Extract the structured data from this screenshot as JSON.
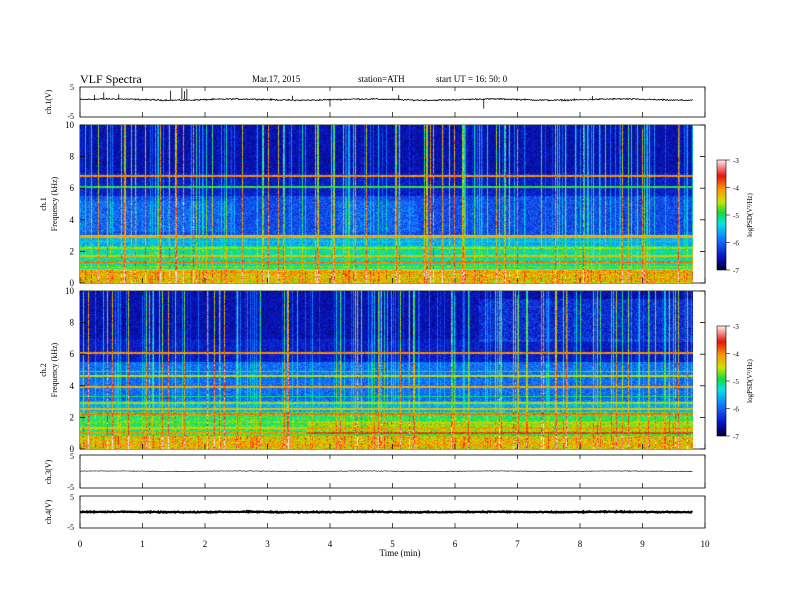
{
  "header": {
    "title": "VLF Spectra",
    "date": "Mar.17, 2015",
    "station": "station=ATH",
    "start": "start  UT =   16: 50: 0"
  },
  "chart_data": [
    {
      "type": "line",
      "ylabel": "ch.1(V)",
      "ylim": [
        -5,
        5
      ],
      "yticks": [
        "5",
        "-5"
      ],
      "baseline": 0.8,
      "noise": 0.35,
      "spikes": [
        {
          "t": 0.23,
          "v": 2.4
        },
        {
          "t": 0.38,
          "v": 3.2
        },
        {
          "t": 0.62,
          "v": 2.6
        },
        {
          "t": 1.45,
          "v": 3.8
        },
        {
          "t": 1.63,
          "v": 4.6
        },
        {
          "t": 1.67,
          "v": 3.6
        },
        {
          "t": 1.71,
          "v": 4.4
        },
        {
          "t": 3.4,
          "v": 2.1
        },
        {
          "t": 4.0,
          "v": -1.6
        },
        {
          "t": 5.1,
          "v": 2.3
        },
        {
          "t": 6.46,
          "v": -2.2
        },
        {
          "t": 8.2,
          "v": 2.0
        }
      ]
    },
    {
      "type": "heatmap",
      "ylabel": "ch.1\nFrequency (kHz)",
      "ylim": [
        0,
        10
      ],
      "yticks": [
        "0",
        "2",
        "4",
        "6",
        "8",
        "10"
      ],
      "colorbar_label": "logPSD(V²/Hz)",
      "colorbar_ticks": [
        "-3",
        "-4",
        "-5",
        "-6",
        "-7"
      ],
      "colorbar_range": [
        -7,
        -3
      ],
      "tone_lines_khz": [
        0.1,
        0.2,
        0.35,
        0.5,
        0.65,
        0.8,
        1.0,
        1.3,
        1.7,
        2.2,
        2.6,
        2.9,
        3.0,
        6.1,
        6.8
      ]
    },
    {
      "type": "heatmap",
      "ylabel": "ch.2\nFrequency (kHz)",
      "ylim": [
        0,
        10
      ],
      "yticks": [
        "0",
        "2",
        "4",
        "6",
        "8",
        "10"
      ],
      "colorbar_label": "logPSD(V²/Hz)",
      "colorbar_ticks": [
        "-3",
        "-4",
        "-5",
        "-6",
        "-7"
      ],
      "colorbar_range": [
        -7,
        -3
      ],
      "tone_lines_khz": [
        0.1,
        0.25,
        0.5,
        0.8,
        1.0,
        1.3,
        1.7,
        2.2,
        2.5,
        2.9,
        3.3,
        3.9,
        4.6,
        4.9,
        6.1
      ]
    },
    {
      "type": "line",
      "ylabel": "ch.3(V)",
      "ylim": [
        -5,
        5
      ],
      "yticks": [
        "5",
        "-5"
      ],
      "baseline": 0.1,
      "noise": 0.15
    },
    {
      "type": "line",
      "ylabel": "ch.4(V)",
      "ylim": [
        -5,
        5
      ],
      "yticks": [
        "5",
        "-5"
      ],
      "baseline": 0.0,
      "noise": 0.25
    }
  ],
  "xaxis": {
    "label": "Time (min)",
    "xlim": [
      0,
      10
    ],
    "ticks": [
      "0",
      "1",
      "2",
      "3",
      "4",
      "5",
      "6",
      "7",
      "8",
      "9",
      "10"
    ],
    "data_end": 9.8
  },
  "colors": {
    "trace": "#000000",
    "background_low": "#000060",
    "background_mid": "#0a1fd0"
  }
}
